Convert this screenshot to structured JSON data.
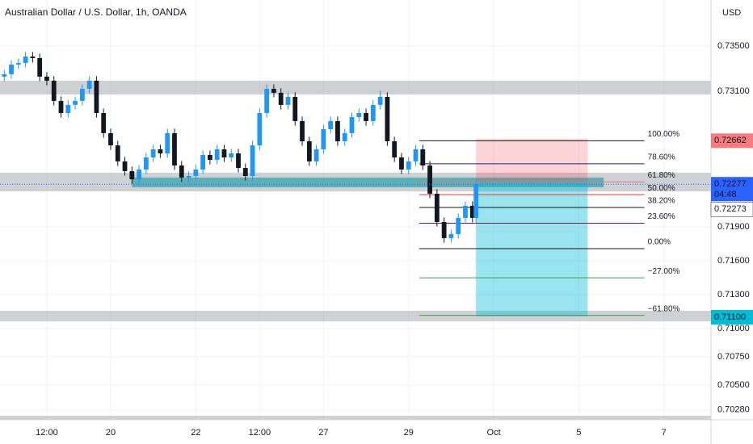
{
  "chart_data": {
    "type": "candlestick",
    "title": "Australian Dollar / U.S. Dollar, 1h, OANDA",
    "currency": "USD",
    "up_color": "#2196f3",
    "down_color": "#131722",
    "x": [
      -60,
      -56,
      -52,
      -48,
      -44,
      -40,
      -36,
      -32,
      -28,
      -24,
      -20,
      -16,
      -12,
      -8,
      -4,
      0,
      4,
      8,
      12,
      16,
      20,
      24,
      28,
      32,
      36,
      40,
      44,
      48,
      52,
      56,
      60,
      64,
      68,
      72,
      76,
      80,
      84,
      88,
      92,
      96,
      100,
      104,
      108,
      112,
      116,
      120,
      124,
      128,
      132,
      136,
      140,
      144,
      148,
      152,
      156,
      160,
      164,
      168,
      172,
      176,
      180,
      184,
      188,
      192,
      196,
      200,
      204,
      206
    ],
    "open": [
      0.73229,
      0.7325,
      0.73336,
      0.7335,
      0.73407,
      0.73393,
      0.73229,
      0.73193,
      0.73014,
      0.72907,
      0.72979,
      0.73014,
      0.73121,
      0.73193,
      0.72907,
      0.72729,
      0.72621,
      0.72479,
      0.72393,
      0.72321,
      0.72407,
      0.72514,
      0.72586,
      0.7255,
      0.72729,
      0.72443,
      0.72336,
      0.7235,
      0.72407,
      0.72536,
      0.72493,
      0.72586,
      0.72514,
      0.7255,
      0.72421,
      0.7235,
      0.72621,
      0.72907,
      0.73121,
      0.73086,
      0.72979,
      0.7305,
      0.72836,
      0.72657,
      0.72479,
      0.72586,
      0.72764,
      0.72836,
      0.72657,
      0.72729,
      0.72871,
      0.72907,
      0.72836,
      0.72979,
      0.7305,
      0.72657,
      0.72514,
      0.72407,
      0.72479,
      0.72586,
      0.72443,
      0.72193,
      0.71943,
      0.718,
      0.71836,
      0.71979,
      0.72086,
      0.71979
    ],
    "high": [
      0.7329,
      0.73376,
      0.7339,
      0.73447,
      0.73447,
      0.73433,
      0.73269,
      0.73233,
      0.73054,
      0.73019,
      0.73054,
      0.73161,
      0.73233,
      0.73233,
      0.72947,
      0.72769,
      0.72661,
      0.72519,
      0.72433,
      0.72447,
      0.72554,
      0.72626,
      0.72626,
      0.72769,
      0.72769,
      0.72483,
      0.7239,
      0.72447,
      0.72576,
      0.72576,
      0.72626,
      0.72626,
      0.7259,
      0.7259,
      0.72461,
      0.72661,
      0.72947,
      0.73161,
      0.73161,
      0.73126,
      0.7309,
      0.7309,
      0.72876,
      0.72697,
      0.72626,
      0.72804,
      0.72876,
      0.72876,
      0.72769,
      0.72911,
      0.72947,
      0.72947,
      0.73019,
      0.73107,
      0.7309,
      0.72697,
      0.72554,
      0.72519,
      0.72626,
      0.72626,
      0.72483,
      0.72233,
      0.71983,
      0.71876,
      0.72019,
      0.72126,
      0.72126,
      0.72317
    ],
    "low": [
      0.73189,
      0.7321,
      0.73296,
      0.7331,
      0.73353,
      0.73189,
      0.73153,
      0.72974,
      0.72867,
      0.72867,
      0.72939,
      0.72974,
      0.73081,
      0.72867,
      0.72689,
      0.72581,
      0.72439,
      0.72353,
      0.72281,
      0.72281,
      0.72367,
      0.72474,
      0.7251,
      0.7251,
      0.72403,
      0.72296,
      0.72296,
      0.7231,
      0.72367,
      0.72453,
      0.72453,
      0.72474,
      0.72474,
      0.72381,
      0.7231,
      0.7231,
      0.72581,
      0.72867,
      0.73046,
      0.72939,
      0.72939,
      0.72796,
      0.72617,
      0.72439,
      0.72439,
      0.72546,
      0.72724,
      0.72617,
      0.72617,
      0.72689,
      0.72831,
      0.72796,
      0.72796,
      0.72939,
      0.72617,
      0.72474,
      0.72367,
      0.72367,
      0.72439,
      0.72403,
      0.72153,
      0.71903,
      0.7176,
      0.7176,
      0.71796,
      0.71939,
      0.71939,
      0.71939
    ],
    "close": [
      0.7325,
      0.73336,
      0.7335,
      0.73407,
      0.73393,
      0.73229,
      0.73193,
      0.73014,
      0.72907,
      0.72979,
      0.73014,
      0.73121,
      0.73193,
      0.72907,
      0.72729,
      0.72621,
      0.72479,
      0.72393,
      0.72321,
      0.72407,
      0.72514,
      0.72586,
      0.7255,
      0.72729,
      0.72443,
      0.72336,
      0.7235,
      0.72407,
      0.72536,
      0.72493,
      0.72586,
      0.72514,
      0.7255,
      0.72421,
      0.7235,
      0.72621,
      0.72907,
      0.73121,
      0.73086,
      0.72979,
      0.7305,
      0.72836,
      0.72657,
      0.72479,
      0.72586,
      0.72764,
      0.72836,
      0.72657,
      0.72729,
      0.72871,
      0.72907,
      0.72836,
      0.72979,
      0.7305,
      0.72657,
      0.72514,
      0.72407,
      0.72479,
      0.72586,
      0.72443,
      0.72193,
      0.71943,
      0.718,
      0.71836,
      0.71979,
      0.72086,
      0.71979,
      0.72277
    ],
    "xlim": [
      -62.4,
      338.5
    ],
    "xticks": [
      {
        "value": -36,
        "label": "12:00"
      },
      {
        "value": 0,
        "label": "20"
      },
      {
        "value": 48,
        "label": "22"
      },
      {
        "value": 84,
        "label": "12:00"
      },
      {
        "value": 120,
        "label": "27"
      },
      {
        "value": 168,
        "label": "29"
      },
      {
        "value": 216,
        "label": "Oct"
      },
      {
        "value": 264,
        "label": "5"
      },
      {
        "value": 312,
        "label": "7"
      }
    ],
    "ylim": [
      0.70193,
      0.73907
    ],
    "yticks": [
      {
        "value": 0.735,
        "label": "0.73500"
      },
      {
        "value": 0.731,
        "label": "0.73100"
      },
      {
        "value": 0.719,
        "label": "0.71900"
      },
      {
        "value": 0.716,
        "label": "0.71600"
      },
      {
        "value": 0.713,
        "label": "0.71300"
      },
      {
        "value": 0.71,
        "label": "0.71000"
      },
      {
        "value": 0.7075,
        "label": "0.70750"
      },
      {
        "value": 0.705,
        "label": "0.70500"
      },
      {
        "value": 0.7028,
        "label": "0.70280"
      }
    ],
    "grid": true,
    "zones": [
      [
        0.73071,
        0.73193
      ],
      [
        0.72214,
        0.72379
      ],
      [
        0.71064,
        0.71157
      ],
      [
        0.70193,
        0.70229
      ]
    ],
    "highlight": {
      "x": [
        12,
        278
      ],
      "range": [
        0.7225,
        0.72336
      ]
    },
    "position": {
      "x": [
        206,
        269
      ],
      "entry": 0.72293,
      "stop": 0.72679,
      "target": 0.71107
    },
    "fib": {
      "x": [
        174,
        301
      ],
      "from": 0.71707,
      "to": 0.72662,
      "levels": [
        {
          "ratio": {
            "value": 100,
            "label": "100.00%"
          },
          "color": "#131722"
        },
        {
          "ratio": {
            "value": 78.6,
            "label": "78.60%"
          },
          "color": "#1a237e"
        },
        {
          "ratio": {
            "value": 61.8,
            "label": "61.80%"
          },
          "color": "#e57373"
        },
        {
          "ratio": {
            "value": 50,
            "label": "50.00%"
          },
          "color": "#e53935"
        },
        {
          "ratio": {
            "value": 38.2,
            "label": "38.20%"
          },
          "color": "#131722"
        },
        {
          "ratio": {
            "value": 23.6,
            "label": "23.60%"
          },
          "color": "#880e4f"
        },
        {
          "ratio": {
            "value": 0,
            "label": "0.00%"
          },
          "color": "#131722"
        },
        {
          "ratio": {
            "value": -27,
            "label": "−27.00%"
          },
          "color": "#43a047"
        },
        {
          "ratio": {
            "value": -61.8,
            "label": "−61.80%"
          },
          "color": "#43a047"
        }
      ]
    },
    "current_price": 0.72277,
    "countdown": "04:48",
    "price_tags": [
      {
        "price": 0.72662,
        "bg": "#f77c80",
        "fg": "#ffffff"
      },
      {
        "price": {
          "value": 0.711,
          "label": "0.71100"
        },
        "bg": "#00bcd4",
        "fg": "#131722"
      }
    ],
    "extra_tag": 0.72273
  }
}
